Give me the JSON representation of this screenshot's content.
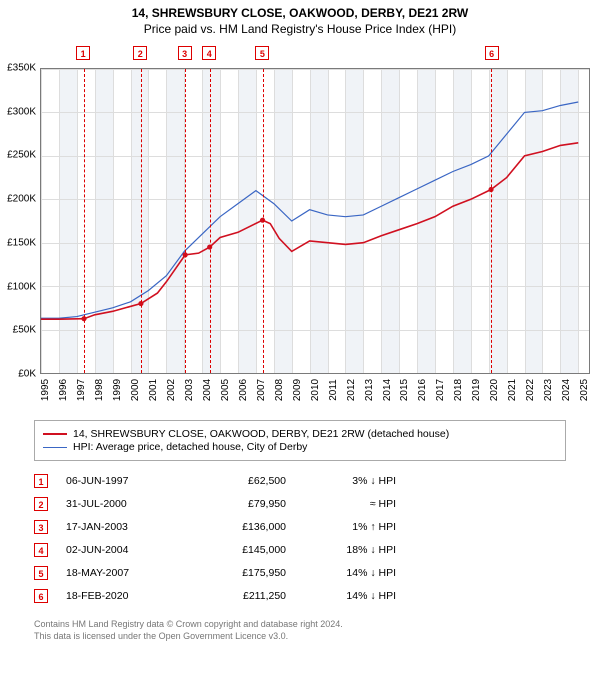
{
  "title_line1": "14, SHREWSBURY CLOSE, OAKWOOD, DERBY, DE21 2RW",
  "title_line2": "Price paid vs. HM Land Registry's House Price Index (HPI)",
  "chart": {
    "type": "line",
    "background_color": "#ffffff",
    "shade_color": "#f0f3f7",
    "grid_color": "#dddddd",
    "border_color": "#7a7a7a",
    "y": {
      "min": 0,
      "max": 350000,
      "step": 50000,
      "tick_labels": [
        "£0K",
        "£50K",
        "£100K",
        "£150K",
        "£200K",
        "£250K",
        "£300K",
        "£350K"
      ],
      "fontsize": 10
    },
    "x": {
      "min": 1995,
      "max": 2025.6,
      "years": [
        1995,
        1996,
        1997,
        1998,
        1999,
        2000,
        2001,
        2002,
        2003,
        2004,
        2005,
        2006,
        2007,
        2008,
        2009,
        2010,
        2011,
        2012,
        2013,
        2014,
        2015,
        2016,
        2017,
        2018,
        2019,
        2020,
        2021,
        2022,
        2023,
        2024,
        2025
      ],
      "fontsize": 10
    },
    "series_property": {
      "label": "14, SHREWSBURY CLOSE, OAKWOOD, DERBY, DE21 2RW (detached house)",
      "color": "#d01020",
      "line_width": 1.6,
      "points": [
        [
          1995,
          62000
        ],
        [
          1996,
          62000
        ],
        [
          1997.4,
          62500
        ],
        [
          1998,
          67000
        ],
        [
          1999,
          71000
        ],
        [
          2000.58,
          79950
        ],
        [
          2001.5,
          92000
        ],
        [
          2002,
          105000
        ],
        [
          2003.05,
          136000
        ],
        [
          2003.8,
          138000
        ],
        [
          2004.42,
          145000
        ],
        [
          2005,
          156000
        ],
        [
          2006,
          162000
        ],
        [
          2007.37,
          175950
        ],
        [
          2007.8,
          172000
        ],
        [
          2008.3,
          155000
        ],
        [
          2009,
          140000
        ],
        [
          2010,
          152000
        ],
        [
          2011,
          150000
        ],
        [
          2012,
          148000
        ],
        [
          2013,
          150000
        ],
        [
          2014,
          158000
        ],
        [
          2015,
          165000
        ],
        [
          2016,
          172000
        ],
        [
          2017,
          180000
        ],
        [
          2018,
          192000
        ],
        [
          2019,
          200000
        ],
        [
          2020.13,
          211250
        ],
        [
          2021,
          225000
        ],
        [
          2022,
          250000
        ],
        [
          2023,
          255000
        ],
        [
          2024,
          262000
        ],
        [
          2025,
          265000
        ]
      ],
      "markers": [
        [
          1997.4,
          62500
        ],
        [
          2000.58,
          79950
        ],
        [
          2003.05,
          136000
        ],
        [
          2004.42,
          145000
        ],
        [
          2007.37,
          175950
        ],
        [
          2020.13,
          211250
        ]
      ]
    },
    "series_hpi": {
      "label": "HPI: Average price, detached house, City of Derby",
      "color": "#3a66c4",
      "line_width": 1.2,
      "points": [
        [
          1995,
          63000
        ],
        [
          1996,
          63000
        ],
        [
          1997,
          65000
        ],
        [
          1998,
          70000
        ],
        [
          1999,
          75000
        ],
        [
          2000,
          82000
        ],
        [
          2001,
          95000
        ],
        [
          2002,
          112000
        ],
        [
          2003,
          140000
        ],
        [
          2004,
          160000
        ],
        [
          2005,
          180000
        ],
        [
          2006,
          195000
        ],
        [
          2007,
          210000
        ],
        [
          2008,
          195000
        ],
        [
          2009,
          175000
        ],
        [
          2010,
          188000
        ],
        [
          2011,
          182000
        ],
        [
          2012,
          180000
        ],
        [
          2013,
          182000
        ],
        [
          2014,
          192000
        ],
        [
          2015,
          202000
        ],
        [
          2016,
          212000
        ],
        [
          2017,
          222000
        ],
        [
          2018,
          232000
        ],
        [
          2019,
          240000
        ],
        [
          2020,
          250000
        ],
        [
          2021,
          275000
        ],
        [
          2022,
          300000
        ],
        [
          2023,
          302000
        ],
        [
          2024,
          308000
        ],
        [
          2025,
          312000
        ]
      ]
    },
    "events": [
      {
        "n": "1",
        "x": 1997.4
      },
      {
        "n": "2",
        "x": 2000.58
      },
      {
        "n": "3",
        "x": 2003.05
      },
      {
        "n": "4",
        "x": 2004.42
      },
      {
        "n": "5",
        "x": 2007.37
      },
      {
        "n": "6",
        "x": 2020.13
      }
    ],
    "event_line_color": "#d01020",
    "event_badge_border": "#d01020",
    "event_badge_text": "#d01020"
  },
  "legend": {
    "items": [
      {
        "color": "#d01020",
        "width": 2,
        "text": "14, SHREWSBURY CLOSE, OAKWOOD, DERBY, DE21 2RW (detached house)"
      },
      {
        "color": "#3a66c4",
        "width": 1.5,
        "text": "HPI: Average price, detached house, City of Derby"
      }
    ]
  },
  "sales": [
    {
      "n": "1",
      "date": "06-JUN-1997",
      "price": "£62,500",
      "diff": "3% ↓ HPI"
    },
    {
      "n": "2",
      "date": "31-JUL-2000",
      "price": "£79,950",
      "diff": "≈ HPI"
    },
    {
      "n": "3",
      "date": "17-JAN-2003",
      "price": "£136,000",
      "diff": "1% ↑ HPI"
    },
    {
      "n": "4",
      "date": "02-JUN-2004",
      "price": "£145,000",
      "diff": "18% ↓ HPI"
    },
    {
      "n": "5",
      "date": "18-MAY-2007",
      "price": "£175,950",
      "diff": "14% ↓ HPI"
    },
    {
      "n": "6",
      "date": "18-FEB-2020",
      "price": "£211,250",
      "diff": "14% ↓ HPI"
    }
  ],
  "footer_line1": "Contains HM Land Registry data © Crown copyright and database right 2024.",
  "footer_line2": "This data is licensed under the Open Government Licence v3.0."
}
